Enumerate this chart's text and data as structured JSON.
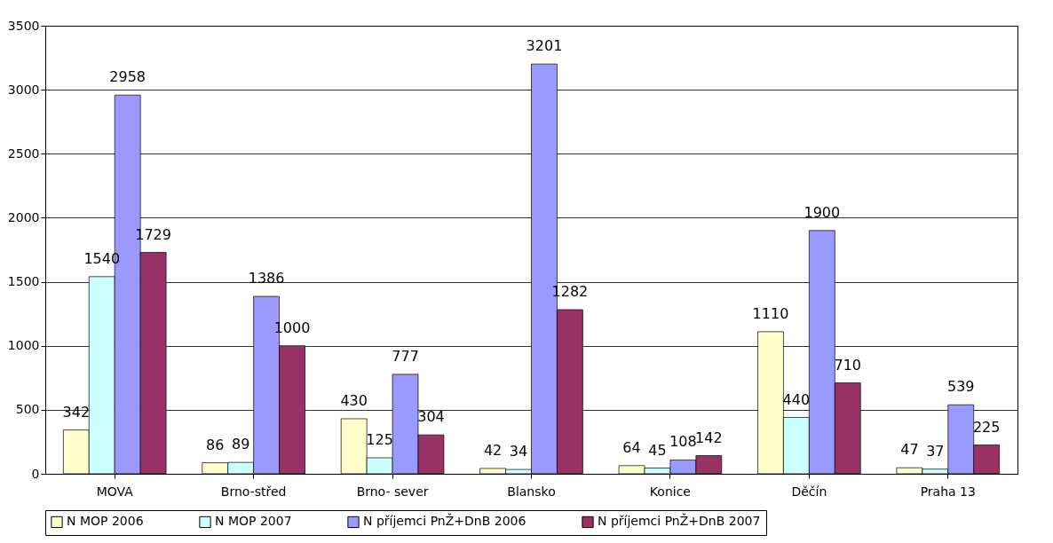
{
  "chart_data": {
    "type": "bar",
    "categories": [
      "MOVA",
      "Brno-střed",
      "Brno- sever",
      "Blansko",
      "Konice",
      "Děčín",
      "Praha 13"
    ],
    "series": [
      {
        "name": "N MOP 2006",
        "color": "#ffffcc",
        "values": [
          342,
          86,
          430,
          42,
          64,
          1110,
          47
        ]
      },
      {
        "name": "N MOP 2007",
        "color": "#ccffff",
        "values": [
          1540,
          89,
          125,
          34,
          45,
          440,
          37
        ]
      },
      {
        "name": "N příjemci PnŽ+DnB 2006",
        "color": "#9999ff",
        "values": [
          2958,
          1386,
          777,
          3201,
          108,
          1900,
          539
        ]
      },
      {
        "name": "N příjemci PnŽ+DnB 2007",
        "color": "#993366",
        "values": [
          1729,
          1000,
          304,
          1282,
          142,
          710,
          225
        ]
      }
    ],
    "ylim": [
      0,
      3500
    ],
    "yticks": [
      0,
      500,
      1000,
      1500,
      2000,
      2500,
      3000,
      3500
    ],
    "grid": "y",
    "legend": "bottom",
    "data_labels": true
  }
}
